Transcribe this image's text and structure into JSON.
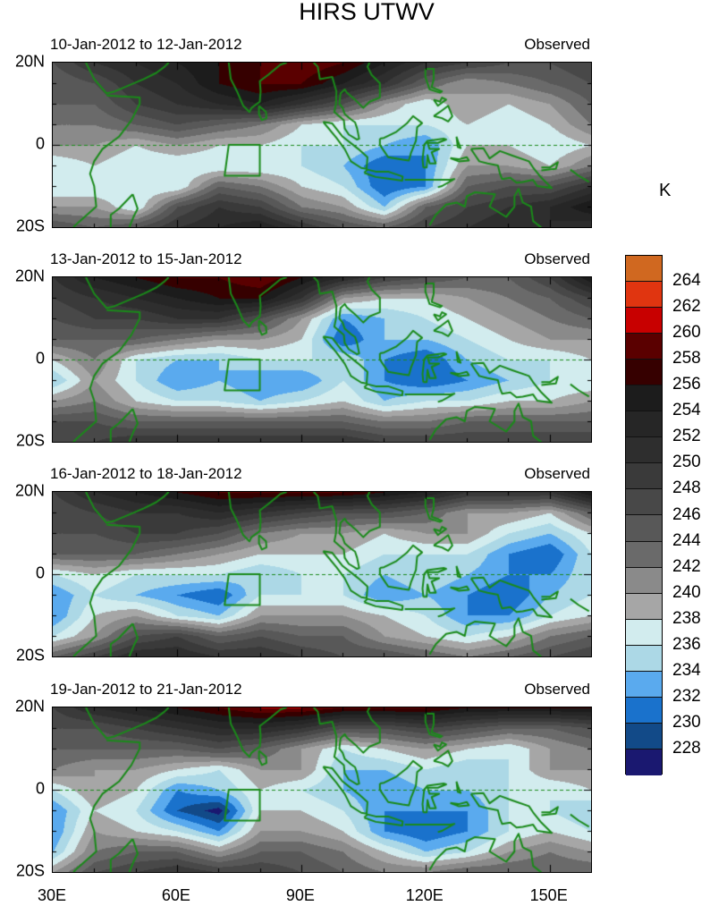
{
  "title": "HIRS UTWV",
  "unit": "K",
  "lon_grid": [
    30,
    40,
    50,
    60,
    70,
    80,
    90,
    100,
    110,
    120,
    130,
    140,
    150,
    160
  ],
  "lat_grid": [
    20,
    15,
    10,
    5,
    0,
    -5,
    -10,
    -15,
    -20
  ],
  "y_axis_labels": [
    "20N",
    "0",
    "20S"
  ],
  "x_axis_labels": [
    "30E",
    "60E",
    "90E",
    "120E",
    "150E"
  ],
  "colorbar": {
    "labels": [
      "264",
      "262",
      "260",
      "258",
      "256",
      "254",
      "252",
      "250",
      "248",
      "246",
      "244",
      "242",
      "240",
      "238",
      "236",
      "234",
      "232",
      "230",
      "228"
    ],
    "levels": [
      228,
      230,
      232,
      234,
      236,
      238,
      240,
      242,
      244,
      246,
      248,
      250,
      252,
      254,
      256,
      258,
      260,
      262,
      264
    ],
    "colors": [
      "#1a1870",
      "#124a88",
      "#1a72cc",
      "#5aaaee",
      "#acd8e6",
      "#d2ecee",
      "#a6a6a6",
      "#8a8a8a",
      "#6a6a6a",
      "#585858",
      "#484848",
      "#3a3a3a",
      "#2e2e2e",
      "#262626",
      "#1c1c1c",
      "#360000",
      "#5a0000",
      "#c80000",
      "#e03510",
      "#d06820"
    ]
  },
  "coast_color": "#1a8a1a",
  "panels": [
    {
      "left_title": "10-Jan-2012 to 12-Jan-2012",
      "right_title": "Observed",
      "field": [
        [
          246,
          250,
          252,
          254,
          256,
          258,
          260,
          258,
          254,
          250,
          248,
          246,
          246,
          248
        ],
        [
          244,
          246,
          250,
          252,
          256,
          258,
          258,
          254,
          250,
          244,
          240,
          242,
          244,
          246
        ],
        [
          244,
          244,
          248,
          250,
          252,
          254,
          250,
          246,
          240,
          236,
          240,
          238,
          240,
          244
        ],
        [
          242,
          242,
          244,
          246,
          244,
          242,
          238,
          236,
          236,
          236,
          238,
          236,
          238,
          242
        ],
        [
          240,
          240,
          238,
          240,
          238,
          238,
          236,
          236,
          234,
          232,
          238,
          238,
          236,
          238
        ],
        [
          236,
          238,
          236,
          236,
          236,
          236,
          236,
          234,
          230,
          232,
          240,
          240,
          238,
          242
        ],
        [
          236,
          236,
          236,
          236,
          244,
          242,
          238,
          236,
          230,
          232,
          244,
          246,
          246,
          250
        ],
        [
          240,
          240,
          236,
          246,
          250,
          248,
          242,
          240,
          234,
          244,
          248,
          250,
          252,
          256
        ],
        [
          246,
          244,
          246,
          250,
          252,
          254,
          250,
          246,
          244,
          248,
          250,
          252,
          252,
          250
        ]
      ]
    },
    {
      "left_title": "13-Jan-2012 to 15-Jan-2012",
      "right_title": "Observed",
      "field": [
        [
          250,
          254,
          256,
          258,
          258,
          260,
          256,
          252,
          248,
          246,
          244,
          244,
          248,
          256
        ],
        [
          248,
          250,
          252,
          254,
          256,
          256,
          250,
          240,
          238,
          238,
          240,
          242,
          244,
          248
        ],
        [
          246,
          248,
          248,
          250,
          250,
          246,
          240,
          232,
          234,
          236,
          238,
          240,
          242,
          244
        ],
        [
          244,
          244,
          244,
          242,
          240,
          240,
          238,
          230,
          234,
          234,
          236,
          238,
          240,
          240
        ],
        [
          238,
          242,
          236,
          234,
          234,
          236,
          236,
          236,
          232,
          230,
          234,
          236,
          236,
          238
        ],
        [
          234,
          240,
          236,
          232,
          234,
          232,
          232,
          236,
          232,
          230,
          232,
          234,
          236,
          236
        ],
        [
          240,
          242,
          238,
          236,
          236,
          234,
          236,
          238,
          234,
          236,
          236,
          238,
          238,
          240
        ],
        [
          246,
          246,
          244,
          244,
          244,
          244,
          244,
          244,
          242,
          242,
          244,
          244,
          244,
          244
        ],
        [
          248,
          248,
          250,
          250,
          250,
          250,
          250,
          250,
          248,
          248,
          248,
          248,
          248,
          248
        ]
      ]
    },
    {
      "left_title": "16-Jan-2012 to 18-Jan-2012",
      "right_title": "Observed",
      "field": [
        [
          248,
          252,
          254,
          256,
          258,
          258,
          258,
          258,
          256,
          254,
          250,
          250,
          250,
          256
        ],
        [
          246,
          248,
          250,
          250,
          252,
          250,
          248,
          246,
          246,
          244,
          240,
          240,
          238,
          244
        ],
        [
          246,
          246,
          248,
          248,
          246,
          242,
          240,
          240,
          238,
          240,
          240,
          236,
          234,
          238
        ],
        [
          244,
          244,
          244,
          242,
          240,
          238,
          238,
          238,
          236,
          236,
          236,
          232,
          230,
          236
        ],
        [
          236,
          238,
          236,
          236,
          236,
          234,
          236,
          236,
          234,
          236,
          234,
          232,
          232,
          236
        ],
        [
          232,
          236,
          234,
          232,
          230,
          236,
          236,
          236,
          232,
          234,
          232,
          230,
          234,
          236
        ],
        [
          232,
          238,
          240,
          236,
          234,
          240,
          240,
          240,
          238,
          236,
          232,
          232,
          236,
          238
        ],
        [
          236,
          240,
          246,
          248,
          244,
          246,
          244,
          244,
          240,
          238,
          236,
          238,
          242,
          244
        ],
        [
          244,
          248,
          252,
          252,
          250,
          250,
          248,
          246,
          246,
          244,
          242,
          244,
          246,
          248
        ]
      ]
    },
    {
      "left_title": "19-Jan-2012 to 21-Jan-2012",
      "right_title": "Observed",
      "field": [
        [
          248,
          252,
          254,
          256,
          258,
          260,
          260,
          258,
          258,
          258,
          256,
          256,
          256,
          256
        ],
        [
          246,
          246,
          248,
          250,
          252,
          252,
          250,
          246,
          246,
          248,
          246,
          244,
          244,
          246
        ],
        [
          244,
          244,
          244,
          244,
          246,
          244,
          240,
          236,
          238,
          240,
          238,
          236,
          240,
          242
        ],
        [
          242,
          240,
          240,
          238,
          236,
          240,
          240,
          234,
          234,
          236,
          234,
          236,
          240,
          240
        ],
        [
          236,
          240,
          238,
          232,
          234,
          238,
          236,
          234,
          232,
          234,
          234,
          236,
          236,
          238
        ],
        [
          232,
          238,
          236,
          230,
          227,
          238,
          238,
          236,
          232,
          232,
          232,
          236,
          236,
          234
        ],
        [
          232,
          240,
          238,
          236,
          232,
          240,
          240,
          238,
          232,
          230,
          232,
          236,
          238,
          236
        ],
        [
          234,
          242,
          244,
          244,
          240,
          244,
          244,
          242,
          238,
          234,
          236,
          240,
          242,
          240
        ],
        [
          240,
          246,
          248,
          250,
          248,
          248,
          246,
          244,
          242,
          242,
          244,
          244,
          244,
          244
        ]
      ]
    }
  ]
}
